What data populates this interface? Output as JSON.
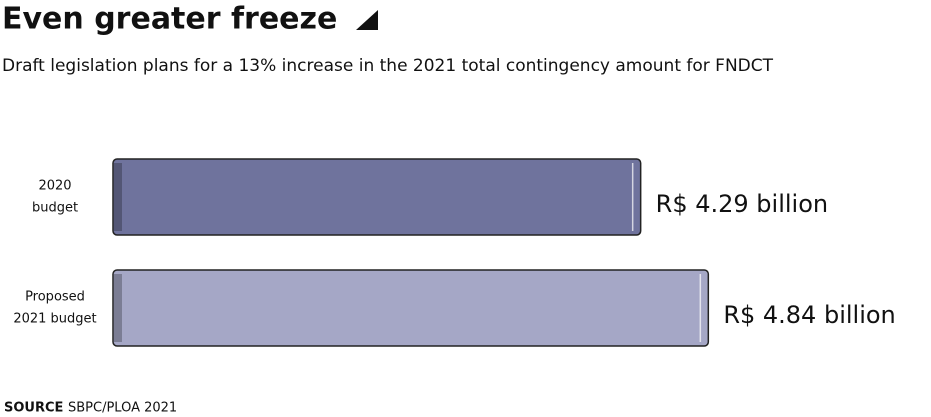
{
  "chart_data": {
    "type": "bar",
    "orientation": "horizontal",
    "title": "Even greater freeze",
    "subtitle": "Draft legislation plans for a 13% increase in the 2021 total contingency amount for FNDCT",
    "categories": [
      [
        "2020",
        "budget"
      ],
      [
        "Proposed",
        "2021 budget"
      ]
    ],
    "values": [
      4.29,
      4.84
    ],
    "value_labels": [
      "R$ 4.29 billion",
      "R$ 4.84 billion"
    ],
    "colors": [
      "#6f739d",
      "#a5a7c6"
    ],
    "source_label": "SOURCE",
    "source": "SBPC/PLOA 2021"
  }
}
